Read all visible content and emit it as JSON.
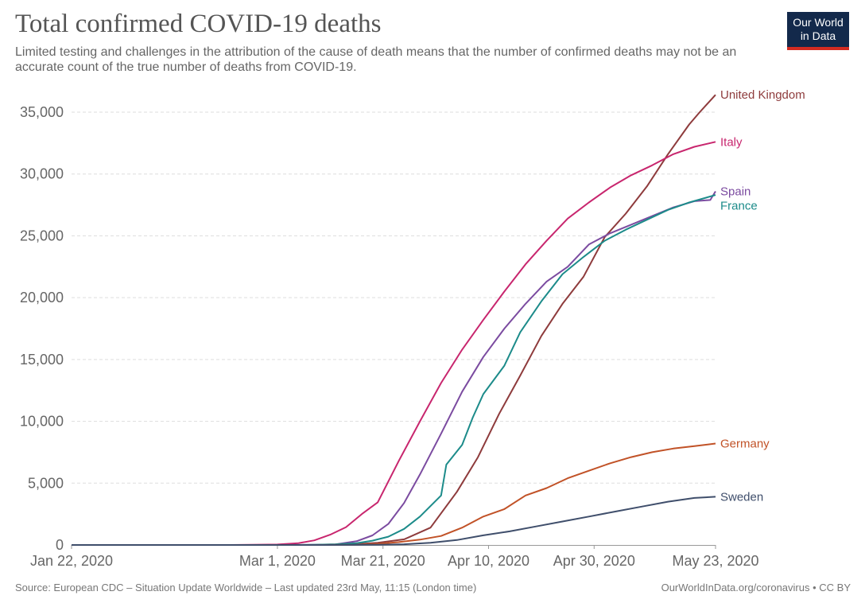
{
  "header": {
    "title": "Total confirmed COVID-19 deaths",
    "subtitle": "Limited testing and challenges in the attribution of the cause of death means that the number of confirmed deaths may not be an accurate count of the true number of deaths from COVID-19.",
    "logo_line1": "Our World",
    "logo_line2": "in Data"
  },
  "footer": {
    "source": "Source: European CDC – Situation Update Worldwide – Last updated 23rd May, 11:15 (London time)",
    "credit": "OurWorldInData.org/coronavirus • CC BY"
  },
  "chart_data": {
    "type": "line",
    "title": "Total confirmed COVID-19 deaths",
    "xlabel": "",
    "ylabel": "",
    "x_domain": [
      "2020-01-22",
      "2020-05-23"
    ],
    "x_ticks": [
      {
        "date": "2020-01-22",
        "label": "Jan 22, 2020"
      },
      {
        "date": "2020-03-01",
        "label": "Mar 1, 2020"
      },
      {
        "date": "2020-03-21",
        "label": "Mar 21, 2020"
      },
      {
        "date": "2020-04-10",
        "label": "Apr 10, 2020"
      },
      {
        "date": "2020-04-30",
        "label": "Apr 30, 2020"
      },
      {
        "date": "2020-05-23",
        "label": "May 23, 2020"
      }
    ],
    "ylim": [
      0,
      35000
    ],
    "y_ticks": [
      0,
      5000,
      10000,
      15000,
      20000,
      25000,
      30000,
      35000
    ],
    "y_tick_labels": [
      "0",
      "5,000",
      "10,000",
      "15,000",
      "20,000",
      "25,000",
      "30,000",
      "35,000"
    ],
    "grid": true,
    "legend": "inline-right",
    "series": [
      {
        "name": "United Kingdom",
        "color": "#8e3b3c",
        "points": [
          [
            "2020-01-22",
            0
          ],
          [
            "2020-03-05",
            0
          ],
          [
            "2020-03-10",
            5
          ],
          [
            "2020-03-15",
            50
          ],
          [
            "2020-03-20",
            180
          ],
          [
            "2020-03-25",
            460
          ],
          [
            "2020-03-30",
            1400
          ],
          [
            "2020-04-04",
            4300
          ],
          [
            "2020-04-08",
            7100
          ],
          [
            "2020-04-12",
            10600
          ],
          [
            "2020-04-16",
            13700
          ],
          [
            "2020-04-20",
            16900
          ],
          [
            "2020-04-24",
            19500
          ],
          [
            "2020-04-28",
            21700
          ],
          [
            "2020-05-02",
            24900
          ],
          [
            "2020-05-06",
            26800
          ],
          [
            "2020-05-10",
            29000
          ],
          [
            "2020-05-14",
            31600
          ],
          [
            "2020-05-18",
            34000
          ],
          [
            "2020-05-20",
            35000
          ],
          [
            "2020-05-23",
            36400
          ]
        ]
      },
      {
        "name": "Italy",
        "color": "#c8266e",
        "points": [
          [
            "2020-01-22",
            0
          ],
          [
            "2020-02-21",
            0
          ],
          [
            "2020-02-25",
            10
          ],
          [
            "2020-03-01",
            40
          ],
          [
            "2020-03-05",
            150
          ],
          [
            "2020-03-08",
            370
          ],
          [
            "2020-03-11",
            830
          ],
          [
            "2020-03-14",
            1440
          ],
          [
            "2020-03-17",
            2500
          ],
          [
            "2020-03-20",
            3450
          ],
          [
            "2020-03-24",
            6800
          ],
          [
            "2020-03-28",
            10000
          ],
          [
            "2020-04-01",
            13100
          ],
          [
            "2020-04-05",
            15800
          ],
          [
            "2020-04-09",
            18200
          ],
          [
            "2020-04-13",
            20500
          ],
          [
            "2020-04-17",
            22700
          ],
          [
            "2020-04-21",
            24600
          ],
          [
            "2020-04-25",
            26400
          ],
          [
            "2020-04-29",
            27700
          ],
          [
            "2020-05-03",
            28900
          ],
          [
            "2020-05-07",
            29900
          ],
          [
            "2020-05-11",
            30700
          ],
          [
            "2020-05-15",
            31600
          ],
          [
            "2020-05-19",
            32200
          ],
          [
            "2020-05-23",
            32600
          ]
        ]
      },
      {
        "name": "Spain",
        "color": "#7b4ba0",
        "points": [
          [
            "2020-01-22",
            0
          ],
          [
            "2020-03-03",
            0
          ],
          [
            "2020-03-08",
            10
          ],
          [
            "2020-03-12",
            50
          ],
          [
            "2020-03-16",
            300
          ],
          [
            "2020-03-19",
            770
          ],
          [
            "2020-03-22",
            1700
          ],
          [
            "2020-03-25",
            3400
          ],
          [
            "2020-03-28",
            5700
          ],
          [
            "2020-04-01",
            9000
          ],
          [
            "2020-04-05",
            12400
          ],
          [
            "2020-04-09",
            15200
          ],
          [
            "2020-04-13",
            17500
          ],
          [
            "2020-04-17",
            19500
          ],
          [
            "2020-04-21",
            21300
          ],
          [
            "2020-04-25",
            22500
          ],
          [
            "2020-04-29",
            24300
          ],
          [
            "2020-05-03",
            25200
          ],
          [
            "2020-05-07",
            25900
          ],
          [
            "2020-05-11",
            26600
          ],
          [
            "2020-05-15",
            27300
          ],
          [
            "2020-05-19",
            27800
          ],
          [
            "2020-05-22",
            27900
          ],
          [
            "2020-05-23",
            28600
          ]
        ]
      },
      {
        "name": "France",
        "color": "#1c8b8a",
        "points": [
          [
            "2020-01-22",
            0
          ],
          [
            "2020-03-03",
            0
          ],
          [
            "2020-03-08",
            20
          ],
          [
            "2020-03-12",
            60
          ],
          [
            "2020-03-16",
            150
          ],
          [
            "2020-03-19",
            350
          ],
          [
            "2020-03-22",
            670
          ],
          [
            "2020-03-25",
            1300
          ],
          [
            "2020-03-28",
            2300
          ],
          [
            "2020-04-01",
            4000
          ],
          [
            "2020-04-02",
            6500
          ],
          [
            "2020-04-05",
            8100
          ],
          [
            "2020-04-07",
            10300
          ],
          [
            "2020-04-09",
            12200
          ],
          [
            "2020-04-13",
            14500
          ],
          [
            "2020-04-16",
            17200
          ],
          [
            "2020-04-20",
            19700
          ],
          [
            "2020-04-24",
            21900
          ],
          [
            "2020-04-28",
            23300
          ],
          [
            "2020-05-02",
            24600
          ],
          [
            "2020-05-06",
            25500
          ],
          [
            "2020-05-10",
            26300
          ],
          [
            "2020-05-14",
            27100
          ],
          [
            "2020-05-18",
            27700
          ],
          [
            "2020-05-23",
            28300
          ]
        ]
      },
      {
        "name": "Germany",
        "color": "#c15227",
        "points": [
          [
            "2020-01-22",
            0
          ],
          [
            "2020-03-08",
            0
          ],
          [
            "2020-03-12",
            5
          ],
          [
            "2020-03-16",
            20
          ],
          [
            "2020-03-20",
            90
          ],
          [
            "2020-03-24",
            230
          ],
          [
            "2020-03-28",
            430
          ],
          [
            "2020-04-01",
            730
          ],
          [
            "2020-04-05",
            1400
          ],
          [
            "2020-04-09",
            2300
          ],
          [
            "2020-04-13",
            2900
          ],
          [
            "2020-04-17",
            4000
          ],
          [
            "2020-04-21",
            4600
          ],
          [
            "2020-04-25",
            5400
          ],
          [
            "2020-04-29",
            6000
          ],
          [
            "2020-05-03",
            6600
          ],
          [
            "2020-05-07",
            7100
          ],
          [
            "2020-05-11",
            7500
          ],
          [
            "2020-05-15",
            7800
          ],
          [
            "2020-05-19",
            8000
          ],
          [
            "2020-05-23",
            8200
          ]
        ]
      },
      {
        "name": "Sweden",
        "color": "#3f4e6b",
        "points": [
          [
            "2020-01-22",
            0
          ],
          [
            "2020-03-10",
            0
          ],
          [
            "2020-03-15",
            5
          ],
          [
            "2020-03-20",
            20
          ],
          [
            "2020-03-25",
            60
          ],
          [
            "2020-03-30",
            180
          ],
          [
            "2020-04-04",
            400
          ],
          [
            "2020-04-09",
            780
          ],
          [
            "2020-04-14",
            1100
          ],
          [
            "2020-04-19",
            1500
          ],
          [
            "2020-04-24",
            1900
          ],
          [
            "2020-04-29",
            2300
          ],
          [
            "2020-05-04",
            2700
          ],
          [
            "2020-05-09",
            3100
          ],
          [
            "2020-05-14",
            3500
          ],
          [
            "2020-05-19",
            3800
          ],
          [
            "2020-05-23",
            3900
          ]
        ]
      }
    ]
  }
}
